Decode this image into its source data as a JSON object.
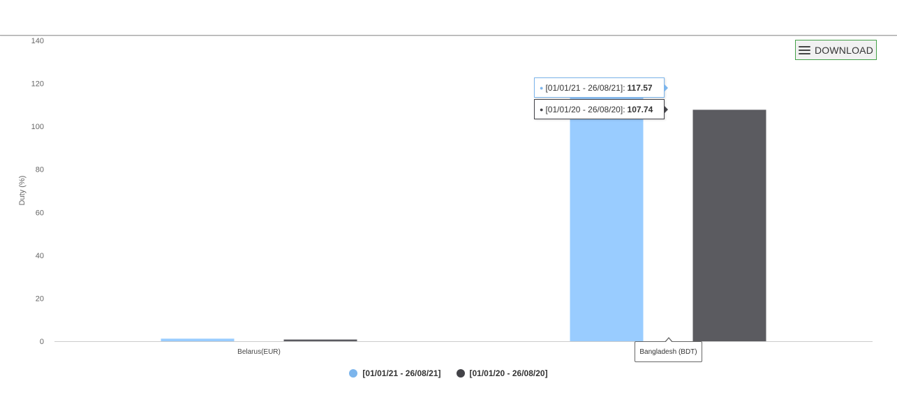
{
  "toolbar": {
    "download_label": "DOWNLOAD",
    "download_icon": "menu-icon"
  },
  "colors": {
    "series_2021": "#99ccff",
    "series_2021_legend": "#7cb5ec",
    "series_2020": "#5b5b60",
    "series_2020_legend": "#434348",
    "axis_line": "#cccccc"
  },
  "tooltip": {
    "rows": [
      {
        "series": "[01/01/21 - 26/08/21]",
        "value": "117.57"
      },
      {
        "series": "[01/01/20 - 26/08/20]",
        "value": "107.74"
      }
    ],
    "category": "Bangladesh (BDT)"
  },
  "chart_data": {
    "type": "bar",
    "categories": [
      "Belarus(EUR)",
      "Bangladesh (BDT)"
    ],
    "series": [
      {
        "name": "[01/01/21 - 26/08/21]",
        "values": [
          1.2,
          117.57
        ]
      },
      {
        "name": "[01/01/20 - 26/08/20]",
        "values": [
          0.8,
          107.74
        ]
      }
    ],
    "ylabel": "Duty (%)",
    "ylim": [
      0,
      140
    ],
    "yticks": [
      "0",
      "20",
      "40",
      "60",
      "80",
      "100",
      "120",
      "140"
    ],
    "legend_position": "bottom-center",
    "grid": false
  }
}
